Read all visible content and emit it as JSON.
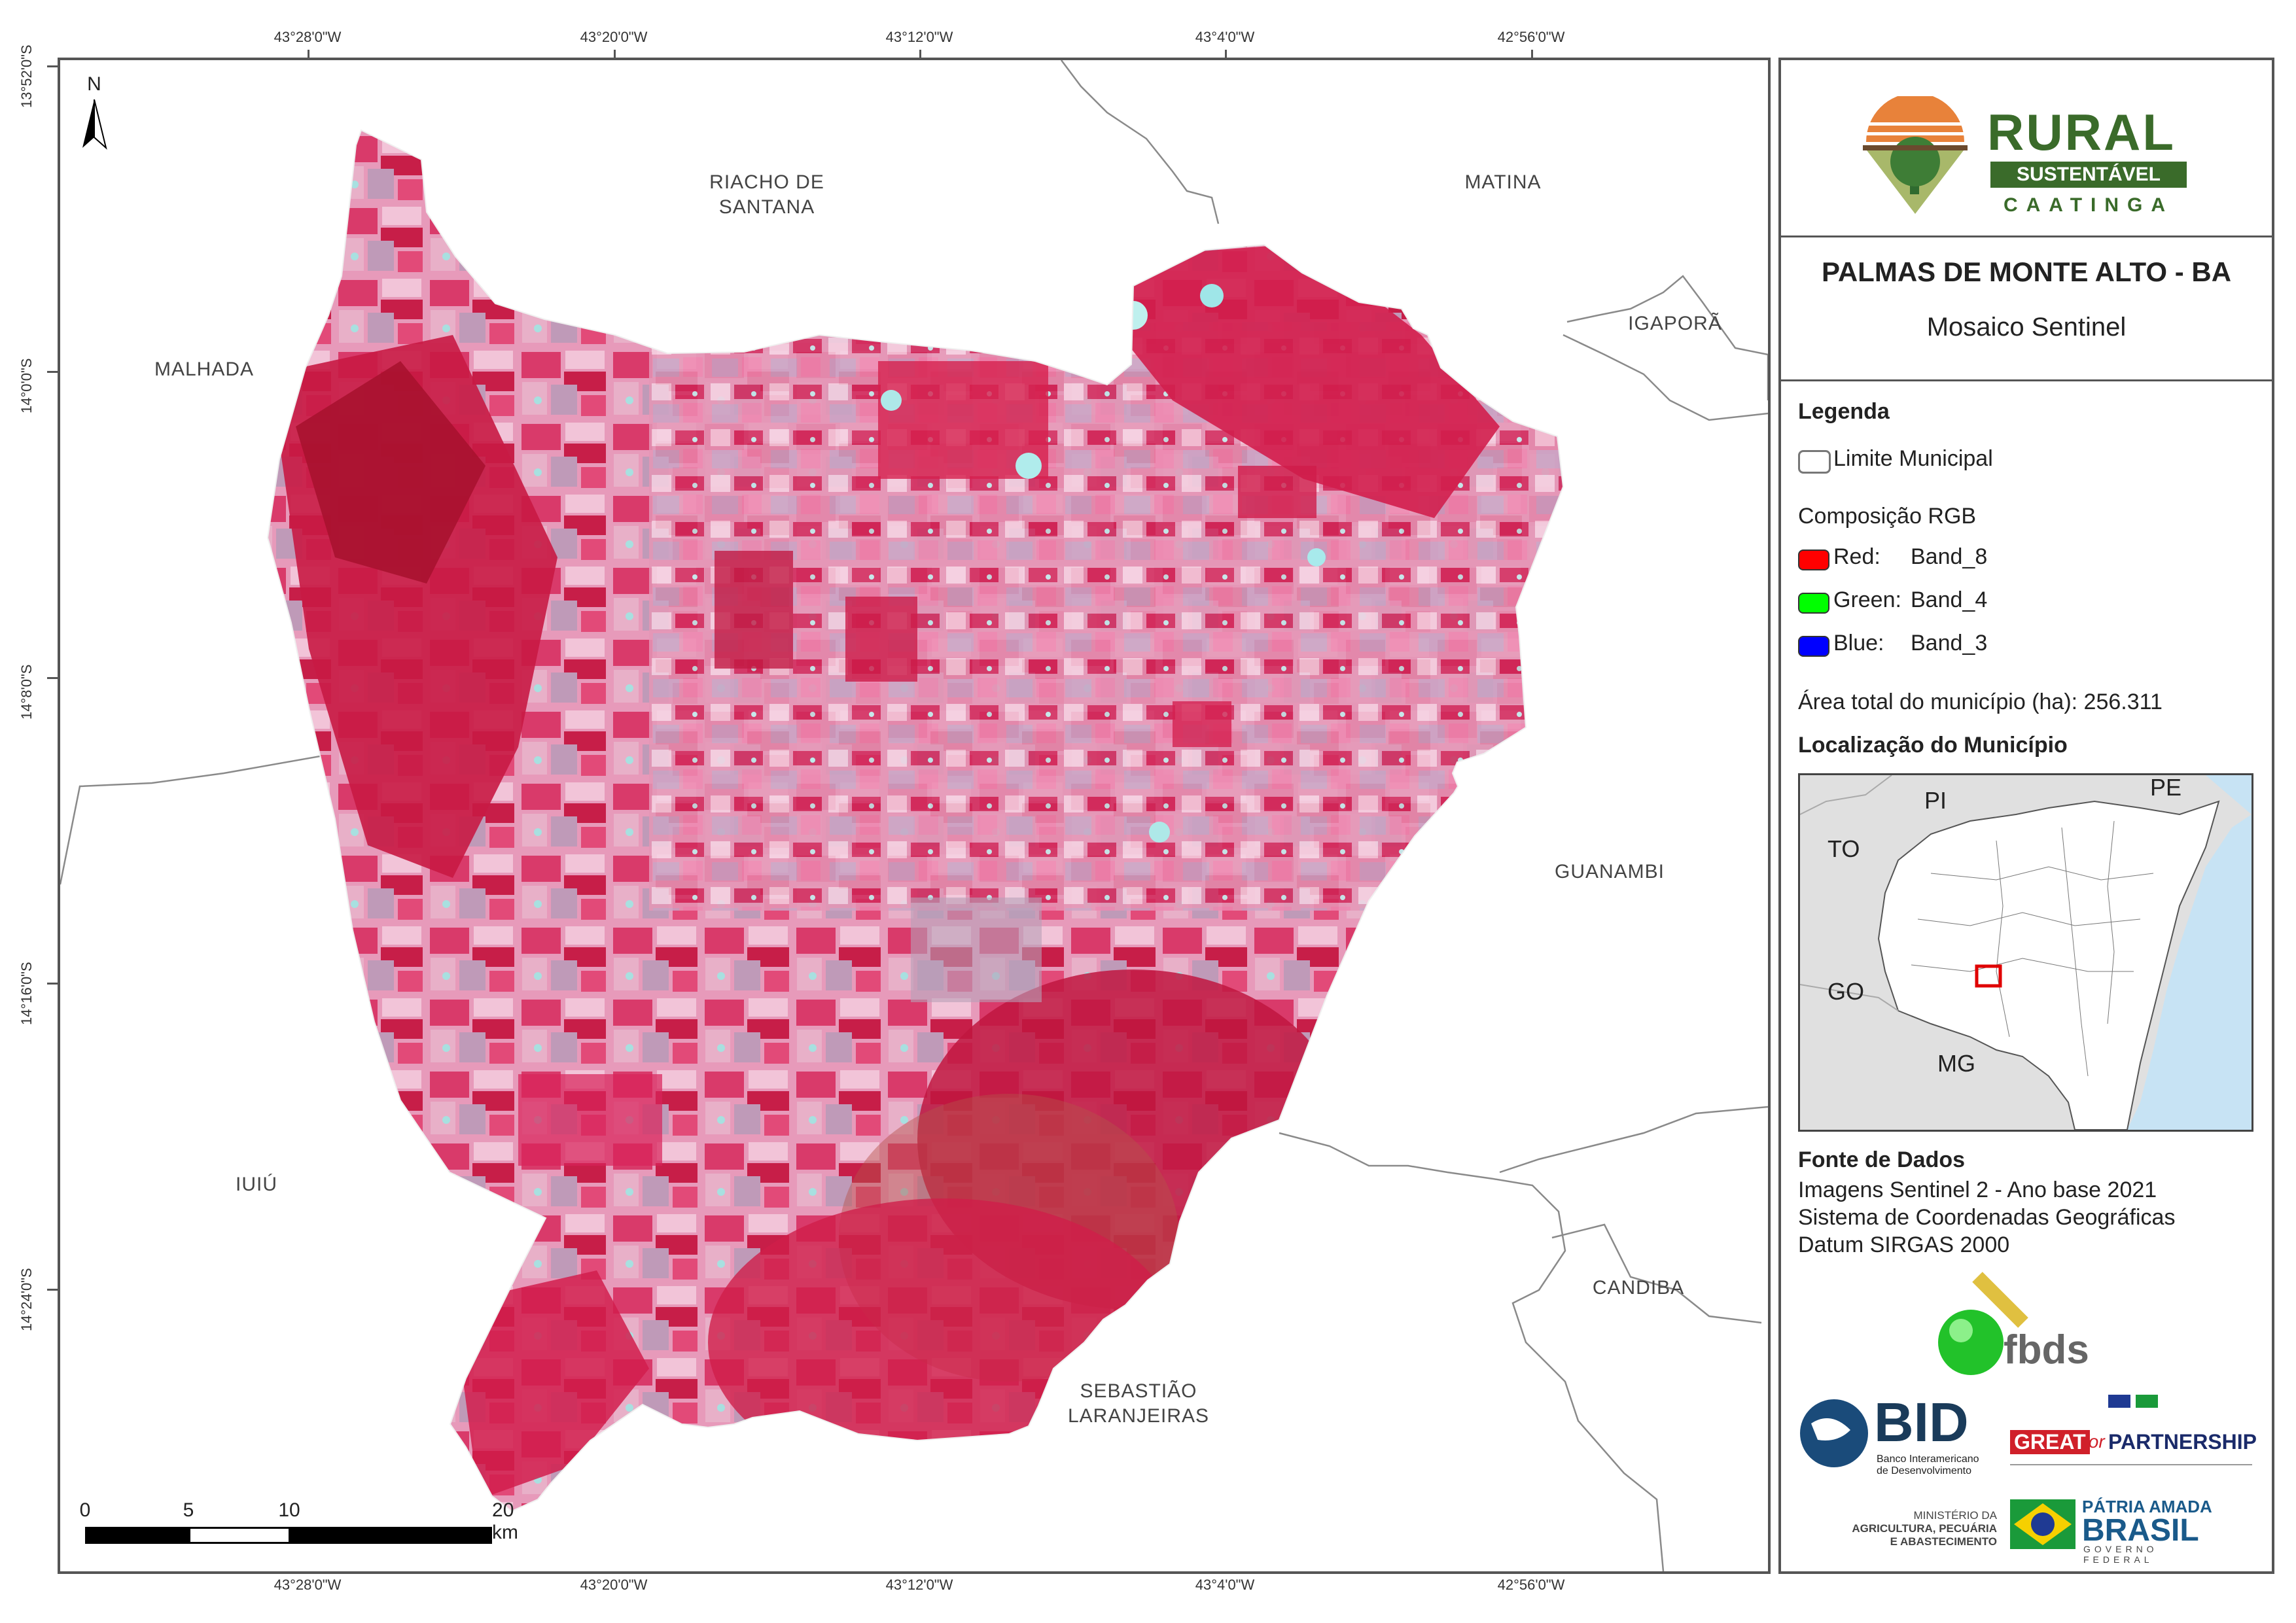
{
  "coordinates": {
    "longitude_labels": [
      "43°28'0\"W",
      "43°20'0\"W",
      "43°12'0\"W",
      "43°4'0\"W",
      "42°56'0\"W"
    ],
    "latitude_labels": [
      "13°52'0\"S",
      "14°0'0\"S",
      "14°8'0\"S",
      "14°16'0\"S",
      "14°24'0\"S"
    ]
  },
  "places": {
    "riacho": [
      "RIACHO DE",
      "SANTANA"
    ],
    "matina": "MATINA",
    "malhada": "MALHADA",
    "igapora": "IGAPORÃ",
    "guanambi": "GUANAMBI",
    "iuiu": "IUIÚ",
    "candiba": "CANDIBA",
    "sebastiao": [
      "SEBASTIÃO",
      "LARANJEIRAS"
    ]
  },
  "north_arrow": {
    "label": "N"
  },
  "scale_bar": {
    "labels": [
      "0",
      "5",
      "10",
      "20 km"
    ]
  },
  "logo": {
    "line1": "RURAL",
    "line2": "SUSTENTÁVEL",
    "line3": "CAATINGA"
  },
  "title": {
    "municipality": "PALMAS DE MONTE ALTO - BA",
    "subtitle": "Mosaico Sentinel"
  },
  "legend": {
    "heading": "Legenda",
    "boundary_label": "Limite Municipal",
    "rgb_heading": "Composição RGB",
    "bands": [
      {
        "channel": "Red:",
        "band": "Band_8",
        "color": "#ff0000"
      },
      {
        "channel": "Green:",
        "band": "Band_4",
        "color": "#00ff00"
      },
      {
        "channel": "Blue:",
        "band": "Band_3",
        "color": "#0000ff"
      }
    ],
    "area": "Área total do município (ha): 256.311",
    "location_heading": "Localização do Município"
  },
  "inset": {
    "states": [
      "PI",
      "PE",
      "TO",
      "GO",
      "MG"
    ],
    "marker_color": "#e00000"
  },
  "sources": {
    "heading": "Fonte de Dados",
    "lines": [
      "Imagens Sentinel 2 - Ano base 2021",
      "Sistema de Coordenadas Geográficas",
      "Datum SIRGAS 2000"
    ]
  },
  "sponsors": {
    "fbds": "fbds",
    "bid": "BID",
    "bid_sub": [
      "Banco Interamericano",
      "de Desenvolvimento"
    ],
    "great": "GREAT",
    "great_for": "for",
    "great_partnership": "PARTNERSHIP",
    "ministry": [
      "MINISTÉRIO DA",
      "AGRICULTURA, PECUÁRIA",
      "E ABASTECIMENTO"
    ],
    "patria": "PÁTRIA AMADA",
    "brasil": "BRASIL",
    "governo": "GOVERNO FEDERAL"
  }
}
